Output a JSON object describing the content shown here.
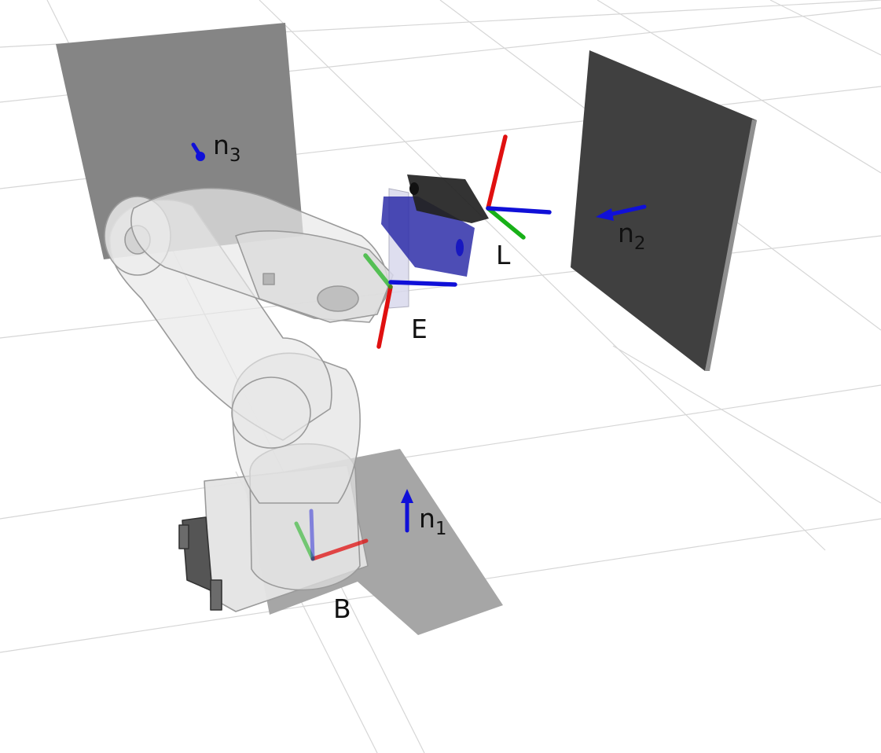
{
  "labels": {
    "base": "B",
    "end_effector": "E",
    "sensor": "L",
    "normal_1": {
      "main": "n",
      "sub": "1"
    },
    "normal_2": {
      "main": "n",
      "sub": "2"
    },
    "normal_3": {
      "main": "n",
      "sub": "3"
    }
  },
  "colors": {
    "x_axis": "#e01010",
    "y_axis": "#18b018",
    "z_axis": "#1010d8",
    "normal_arrow": "#1010d8",
    "floor_plane": "#a6a6a6",
    "back_plane": "#858585",
    "side_plane": "#404040",
    "sensor_body": "#2e2ea8",
    "grid": "#d6d6d6"
  }
}
